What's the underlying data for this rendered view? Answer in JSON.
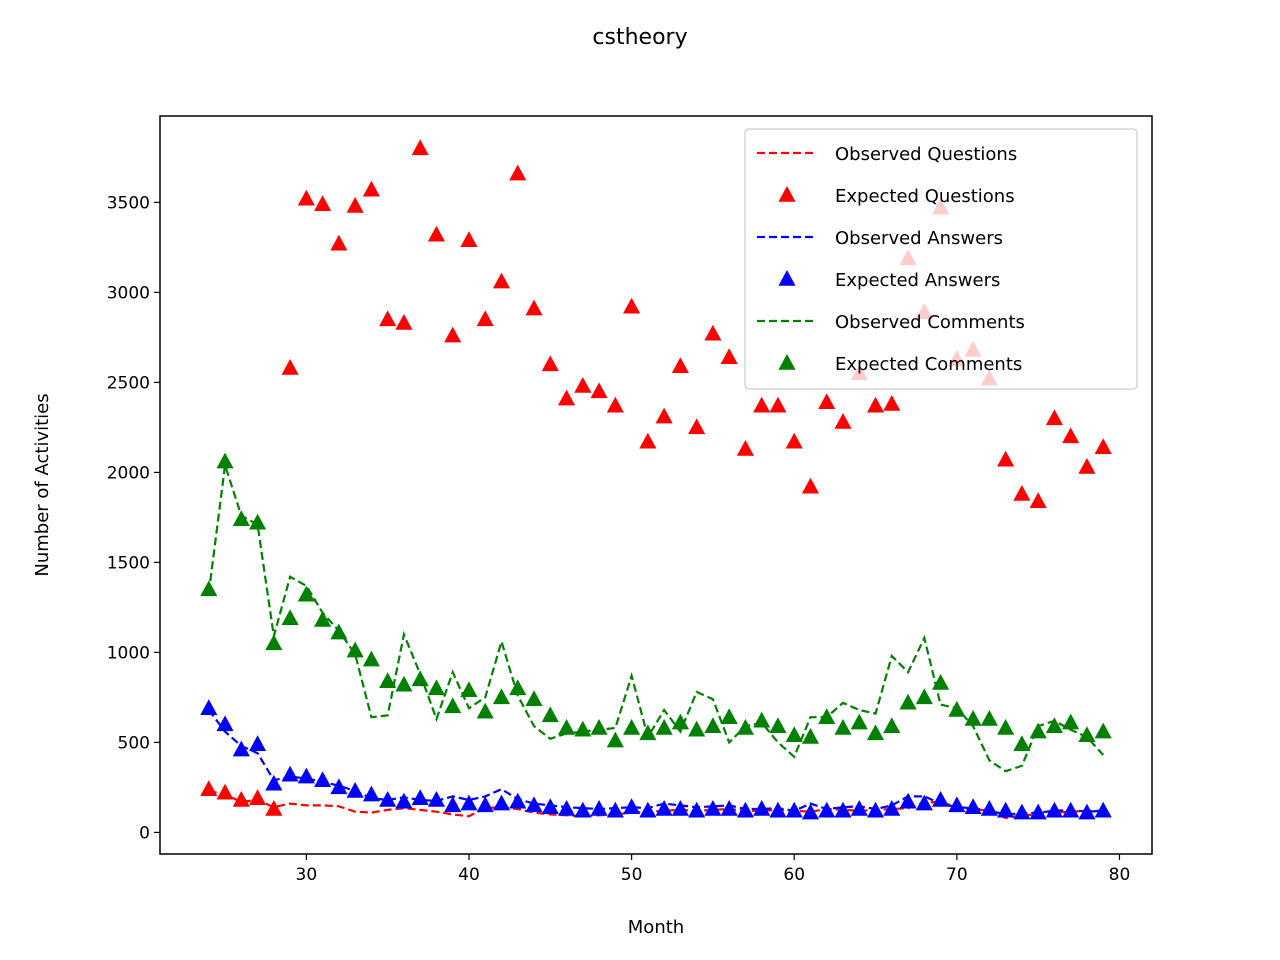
{
  "chart_data": {
    "type": "line",
    "title": "cstheory",
    "xlabel": "Month",
    "ylabel": "Number of Activities",
    "xlim": [
      21,
      82
    ],
    "ylim": [
      -120,
      3980
    ],
    "xticks": [
      30,
      40,
      50,
      60,
      70,
      80
    ],
    "yticks": [
      0,
      500,
      1000,
      1500,
      2000,
      2500,
      3000,
      3500
    ],
    "grid": false,
    "legend_position": "top-right",
    "x": [
      24,
      25,
      26,
      27,
      28,
      29,
      30,
      31,
      32,
      33,
      34,
      35,
      36,
      37,
      38,
      39,
      40,
      41,
      42,
      43,
      44,
      45,
      46,
      47,
      48,
      49,
      50,
      51,
      52,
      53,
      54,
      55,
      56,
      57,
      58,
      59,
      60,
      61,
      62,
      63,
      64,
      65,
      66,
      67,
      68,
      69,
      70,
      71,
      72,
      73,
      74,
      75,
      76,
      77,
      78,
      79
    ],
    "series": [
      {
        "name": "Observed Questions",
        "style": "dashed-line",
        "color": "#ff0000",
        "values": [
          230,
          210,
          170,
          180,
          140,
          160,
          150,
          150,
          145,
          115,
          110,
          125,
          135,
          125,
          115,
          100,
          90,
          135,
          140,
          130,
          110,
          100,
          95,
          90,
          95,
          100,
          110,
          115,
          120,
          125,
          120,
          125,
          130,
          120,
          120,
          125,
          120,
          115,
          130,
          125,
          120,
          125,
          130,
          135,
          165,
          170,
          140,
          130,
          120,
          80,
          95,
          100,
          110,
          115,
          120,
          120
        ]
      },
      {
        "name": "Expected Questions",
        "style": "triangle-marker",
        "color": "#ff0000",
        "values": [
          240,
          220,
          180,
          190,
          130,
          2580,
          3520,
          3490,
          3270,
          3480,
          3570,
          2850,
          2830,
          3800,
          3320,
          2760,
          3290,
          2850,
          3060,
          3660,
          2910,
          2600,
          2410,
          2480,
          2450,
          2370,
          2920,
          2170,
          2310,
          2590,
          2250,
          2770,
          2640,
          2130,
          2370,
          2370,
          2170,
          1920,
          2390,
          2280,
          2550,
          2370,
          2380,
          3190,
          2890,
          3470,
          2630,
          2680,
          2520,
          2070,
          1880,
          1840,
          2300,
          2200,
          2030,
          2140
        ]
      },
      {
        "name": "Observed Answers",
        "style": "dashed-line",
        "color": "#0000ff",
        "values": [
          680,
          560,
          480,
          440,
          290,
          310,
          300,
          280,
          260,
          230,
          190,
          180,
          195,
          180,
          175,
          200,
          180,
          200,
          240,
          185,
          160,
          150,
          140,
          135,
          130,
          135,
          140,
          135,
          160,
          150,
          140,
          145,
          150,
          130,
          130,
          135,
          120,
          160,
          130,
          140,
          145,
          130,
          150,
          200,
          200,
          160,
          140,
          135,
          120,
          100,
          105,
          110,
          120,
          125,
          115,
          120
        ]
      },
      {
        "name": "Expected Answers",
        "style": "triangle-marker",
        "color": "#0000ff",
        "values": [
          690,
          600,
          460,
          490,
          270,
          320,
          310,
          290,
          250,
          230,
          210,
          180,
          170,
          190,
          180,
          150,
          160,
          150,
          160,
          170,
          150,
          140,
          130,
          120,
          130,
          120,
          140,
          120,
          130,
          130,
          120,
          130,
          130,
          120,
          130,
          120,
          120,
          110,
          120,
          120,
          130,
          120,
          130,
          170,
          160,
          180,
          150,
          140,
          130,
          120,
          110,
          110,
          120,
          120,
          110,
          120
        ]
      },
      {
        "name": "Observed Comments",
        "style": "dashed-line",
        "color": "#008000",
        "values": [
          1330,
          2040,
          1760,
          1710,
          1090,
          1420,
          1370,
          1220,
          1120,
          990,
          640,
          650,
          1100,
          880,
          630,
          890,
          690,
          750,
          1060,
          760,
          590,
          520,
          550,
          560,
          570,
          580,
          870,
          530,
          680,
          560,
          780,
          740,
          500,
          590,
          610,
          500,
          420,
          640,
          640,
          720,
          680,
          660,
          980,
          890,
          1080,
          710,
          690,
          590,
          400,
          340,
          370,
          590,
          620,
          570,
          530,
          430
        ]
      },
      {
        "name": "Expected Comments",
        "style": "triangle-marker",
        "color": "#008000",
        "values": [
          1350,
          2060,
          1740,
          1720,
          1050,
          1190,
          1320,
          1180,
          1110,
          1010,
          960,
          840,
          820,
          850,
          800,
          700,
          790,
          670,
          750,
          800,
          740,
          650,
          580,
          570,
          580,
          510,
          580,
          550,
          580,
          610,
          570,
          590,
          640,
          580,
          620,
          590,
          540,
          530,
          640,
          580,
          610,
          550,
          590,
          720,
          750,
          830,
          680,
          630,
          630,
          580,
          490,
          560,
          590,
          610,
          540,
          560
        ]
      }
    ]
  }
}
